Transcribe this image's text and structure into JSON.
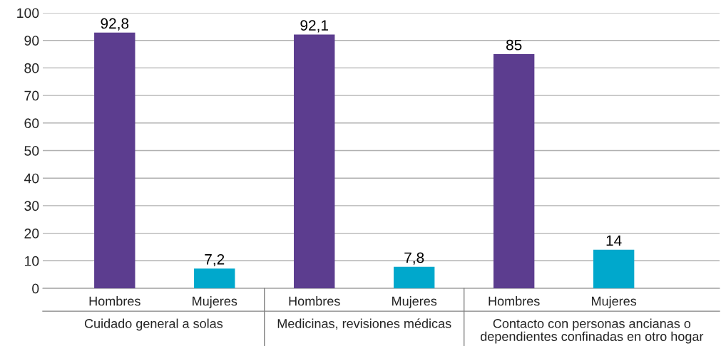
{
  "chart_data": {
    "type": "bar",
    "categories": [
      "Hombres",
      "Mujeres",
      "Hombres",
      "Mujeres",
      "Hombres",
      "Mujeres"
    ],
    "values": [
      92.8,
      7.2,
      92.1,
      7.8,
      85,
      14
    ],
    "colors": [
      "#5c3d8f",
      "#00a8cc",
      "#5c3d8f",
      "#00a8cc",
      "#5c3d8f",
      "#00a8cc"
    ],
    "value_labels": [
      "92,8",
      "7,2",
      "92,1",
      "7,8",
      "85",
      "14"
    ],
    "annotations": [
      "Cuidado general a solas",
      "Medicinas, revisiones médicas",
      "Contacto con personas ancianas o\ndependientes confinadas en otro hogar"
    ],
    "ylim": [
      0,
      100
    ],
    "yticks": [
      0,
      10,
      20,
      30,
      40,
      50,
      60,
      70,
      80,
      90,
      100
    ],
    "grid": "y"
  }
}
